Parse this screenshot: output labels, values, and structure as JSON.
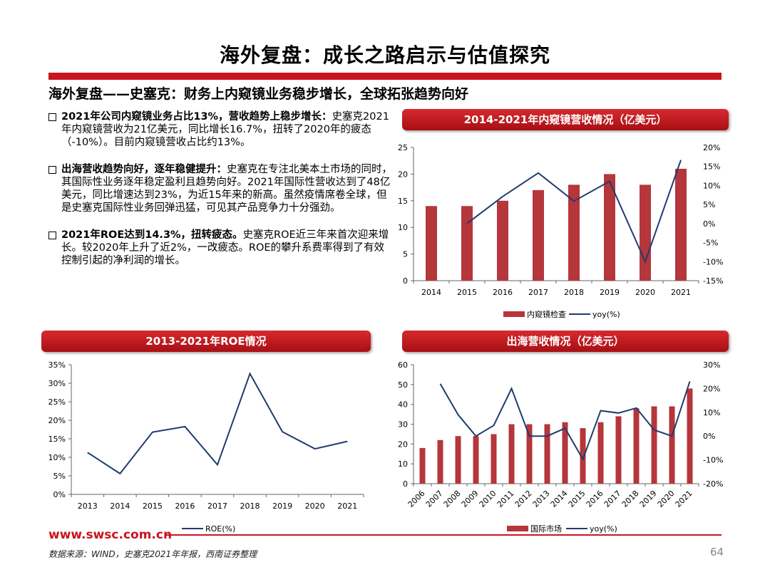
{
  "page": {
    "title": "海外复盘：成长之路启示与估值探究",
    "subtitle": "海外复盘——史塞克：财务上内窥镜业务稳步增长，全球拓张趋势向好"
  },
  "bullets": [
    {
      "bold": "2021年公司内窥镜业务占比13%，营收趋势上稳步增长：",
      "text": "史塞克2021年内窥镜营收为21亿美元，同比增长16.7%，扭转了2020年的疲态（-10%）。目前内窥镜营收占比约13%。"
    },
    {
      "bold": "出海营收趋势向好，逐年稳健提升：",
      "text": "史塞克在专注北美本土市场的同时，其国际性业务逐年稳定盈利且趋势向好。2021年国际性营收达到了48亿美元，同比增速达到23%，为近15年来的新高。虽然疫情席卷全球，但是史塞克国际性业务回弹迅猛，可见其产品竞争力十分强劲。"
    },
    {
      "bold": "2021年ROE达到14.3%，扭转疲态。",
      "text": "史塞克ROE近三年来首次迎来增长。较2020年上升了近2%，一改疲态。ROE的攀升系费率得到了有效控制引起的净利润的增长。"
    }
  ],
  "charts": {
    "endoscope": {
      "header": "2014-2021年内窥镜营收情况（亿美元）",
      "legend_bar": "内窥镜检查",
      "legend_line": "yoy(%)"
    },
    "roe": {
      "header": "2013-2021年ROE情况",
      "legend_line": "ROE(%)"
    },
    "overseas": {
      "header": "出海营收情况（亿美元）",
      "legend_bar": "国际市场",
      "legend_line": "yoy(%)"
    }
  },
  "chart_data": [
    {
      "type": "bar",
      "categories": [
        "2014",
        "2015",
        "2016",
        "2017",
        "2018",
        "2019",
        "2020",
        "2021"
      ],
      "series": [
        {
          "name": "内窥镜检查",
          "type": "bar",
          "axis": "left",
          "values": [
            14,
            14,
            15,
            17,
            18,
            20,
            18,
            21
          ]
        },
        {
          "name": "yoy(%)",
          "type": "line",
          "axis": "right",
          "values": [
            null,
            0,
            7.1,
            13.3,
            5.9,
            11.1,
            -10,
            16.7
          ]
        }
      ],
      "ylim": [
        0,
        25
      ],
      "y_ticks": [
        0,
        5,
        10,
        15,
        20,
        25
      ],
      "y2lim": [
        -15,
        20
      ],
      "y2_ticks": [
        -15,
        -10,
        -5,
        0,
        5,
        10,
        15,
        20
      ],
      "legend": "bottom",
      "grid": false
    },
    {
      "type": "line",
      "categories": [
        "2013",
        "2014",
        "2015",
        "2016",
        "2017",
        "2018",
        "2019",
        "2020",
        "2021"
      ],
      "series": [
        {
          "name": "ROE(%)",
          "values": [
            11.3,
            5.6,
            16.8,
            18.3,
            8.0,
            32.6,
            16.9,
            12.3,
            14.3
          ]
        }
      ],
      "ylim": [
        0,
        35
      ],
      "y_ticks": [
        0,
        5,
        10,
        15,
        20,
        25,
        30,
        35
      ],
      "legend": "bottom",
      "grid": false
    },
    {
      "type": "bar",
      "categories": [
        "2006",
        "2007",
        "2008",
        "2009",
        "2010",
        "2011",
        "2012",
        "2013",
        "2014",
        "2015",
        "2016",
        "2017",
        "2018",
        "2019",
        "2020",
        "2021"
      ],
      "series": [
        {
          "name": "国际市场",
          "type": "bar",
          "axis": "left",
          "values": [
            18,
            22,
            24,
            24,
            25,
            30,
            30,
            30,
            31,
            28,
            31,
            34,
            38,
            39,
            39,
            48
          ]
        },
        {
          "name": "yoy(%)",
          "type": "line",
          "axis": "right",
          "values": [
            null,
            22,
            9,
            0,
            4.5,
            20,
            0,
            0,
            3.3,
            -9.7,
            10.7,
            9.7,
            11.8,
            2.6,
            0,
            23
          ]
        }
      ],
      "ylim": [
        0,
        60
      ],
      "y_ticks": [
        0,
        10,
        20,
        30,
        40,
        50,
        60
      ],
      "y2lim": [
        -20,
        30
      ],
      "y2_ticks": [
        -20,
        -10,
        0,
        10,
        20,
        30
      ],
      "legend": "bottom",
      "grid": false
    }
  ],
  "footer": {
    "url": "www.swsc.com.cn",
    "source": "数据来源：WIND，史塞克2021年年报，西南证券整理",
    "page_number": "64"
  },
  "colors": {
    "accent": "#c9151e",
    "bar": "#b5363b",
    "line": "#1f3c6e"
  }
}
